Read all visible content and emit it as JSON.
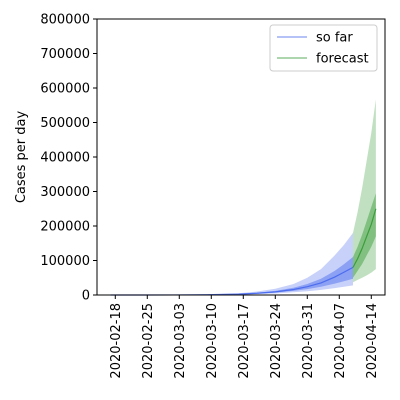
{
  "chart_data": {
    "type": "area",
    "ylabel": "Cases per day",
    "xlabel": "",
    "title": "",
    "ylim": [
      0,
      800000
    ],
    "xlim": [
      "2020-02-14",
      "2020-04-17"
    ],
    "y_ticks": [
      0,
      100000,
      200000,
      300000,
      400000,
      500000,
      600000,
      700000,
      800000
    ],
    "y_tick_labels": [
      "0",
      "100000",
      "200000",
      "300000",
      "400000",
      "500000",
      "600000",
      "700000",
      "800000"
    ],
    "x_ticks": [
      "2020-02-18",
      "2020-02-25",
      "2020-03-03",
      "2020-03-10",
      "2020-03-17",
      "2020-03-24",
      "2020-03-31",
      "2020-04-07",
      "2020-04-14"
    ],
    "legend_position": "top-right",
    "grid": false,
    "series": [
      {
        "name": "so far",
        "color": "#4466ee",
        "x": [
          "2020-02-17",
          "2020-02-24",
          "2020-03-02",
          "2020-03-09",
          "2020-03-16",
          "2020-03-20",
          "2020-03-24",
          "2020-03-28",
          "2020-03-31",
          "2020-04-03",
          "2020-04-06",
          "2020-04-08",
          "2020-04-10"
        ],
        "median": [
          0,
          0,
          200,
          700,
          2500,
          5000,
          9000,
          16000,
          24000,
          35000,
          52000,
          66000,
          80000
        ],
        "inner_low": [
          0,
          0,
          100,
          500,
          2000,
          4000,
          7000,
          12000,
          17000,
          24000,
          33000,
          40000,
          47000
        ],
        "inner_high": [
          0,
          100,
          300,
          900,
          3200,
          6500,
          12000,
          21000,
          32000,
          47000,
          70000,
          89000,
          110000
        ],
        "outer_low": [
          0,
          0,
          0,
          300,
          1300,
          2500,
          4500,
          8000,
          11000,
          15000,
          20000,
          24000,
          28000
        ],
        "outer_high": [
          0,
          200,
          500,
          1500,
          5000,
          10000,
          18000,
          32000,
          50000,
          75000,
          115000,
          145000,
          180000
        ]
      },
      {
        "name": "forecast",
        "color": "#339933",
        "x": [
          "2020-04-10",
          "2020-04-11",
          "2020-04-12",
          "2020-04-13",
          "2020-04-14",
          "2020-04-15"
        ],
        "median": [
          80000,
          105000,
          135000,
          170000,
          205000,
          250000
        ],
        "inner_low": [
          50000,
          70000,
          90000,
          115000,
          140000,
          170000
        ],
        "inner_high": [
          110000,
          140000,
          175000,
          215000,
          255000,
          295000
        ],
        "outer_low": [
          37000,
          44000,
          50000,
          57000,
          65000,
          75000
        ],
        "outer_high": [
          180000,
          240000,
          310000,
          390000,
          470000,
          567000
        ]
      }
    ]
  }
}
